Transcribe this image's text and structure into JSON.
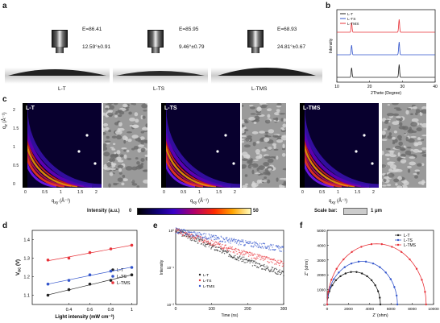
{
  "panels": {
    "a": {
      "letter": "a",
      "samples": [
        {
          "label": "L-T",
          "energy": "E=86.41",
          "angle": "12.59°±0.91"
        },
        {
          "label": "L-TS",
          "energy": "E=85.95",
          "angle": "9.46°±0.79"
        },
        {
          "label": "L-TMS",
          "energy": "E=68.93",
          "angle": "24.81°±0.67"
        }
      ]
    },
    "b": {
      "letter": "b"
    },
    "c": {
      "letter": "c",
      "labels": [
        "L-T",
        "L-TS",
        "L-TMS"
      ],
      "qz_label": "q",
      "qz_sub": "z",
      "qz_unit": " (Å⁻¹)",
      "qxy_label": "q",
      "qxy_sub": "xy",
      "qxy_unit": " (Å⁻¹)",
      "y_ticks": [
        "0",
        "0.5",
        "1",
        "1.5",
        "2"
      ],
      "x_ticks": [
        "0",
        "0.5",
        "1",
        "1.5",
        "2"
      ],
      "colorbar_label": "Intensity (a.u.)",
      "colorbar_min": "0",
      "colorbar_max": "50",
      "scalebar_label": "Scale bar:",
      "scalebar_value": "1 μm"
    },
    "d": {
      "letter": "d"
    },
    "e": {
      "letter": "e"
    },
    "f": {
      "letter": "f"
    }
  },
  "chart_data": [
    {
      "id": "b",
      "type": "line",
      "xlabel": "2Thete (Degree)",
      "ylabel": "Intensity",
      "xlim": [
        10,
        40
      ],
      "x_ticks": [
        10,
        20,
        30,
        40
      ],
      "peaks": [
        14.5,
        29.0
      ],
      "series": [
        {
          "name": "L-T",
          "color": "#222222"
        },
        {
          "name": "L-TS",
          "color": "#3355cc"
        },
        {
          "name": "L-TMS",
          "color": "#e8333a"
        }
      ]
    },
    {
      "id": "d",
      "type": "scatter",
      "xlabel": "Light intensity (mW cm⁻²)",
      "ylabel": "V",
      "ylabel_sub": "OC",
      "ylabel_unit": " (V)",
      "xlim": [
        0.05,
        1.05
      ],
      "ylim": [
        1.05,
        1.45
      ],
      "x_ticks": [
        0.4,
        0.6,
        0.8,
        1
      ],
      "y_ticks": [
        1.1,
        1.2,
        1.3,
        1.4
      ],
      "x": [
        0.2,
        0.4,
        0.6,
        0.8,
        1.0
      ],
      "series": [
        {
          "name": "L-T",
          "color": "#222222",
          "values": [
            1.1,
            1.13,
            1.16,
            1.18,
            1.21
          ]
        },
        {
          "name": "L-TS",
          "color": "#3355cc",
          "values": [
            1.16,
            1.18,
            1.21,
            1.23,
            1.25
          ]
        },
        {
          "name": "L-TMS",
          "color": "#e8333a",
          "values": [
            1.29,
            1.3,
            1.33,
            1.35,
            1.37
          ]
        }
      ]
    },
    {
      "id": "e",
      "type": "scatter",
      "xlabel": "Time (ns)",
      "ylabel": "Intensity",
      "xlim": [
        0,
        300
      ],
      "x_ticks": [
        0,
        100,
        200,
        300
      ],
      "y_scale": "log",
      "ylim": [
        0.01,
        1
      ],
      "y_ticks": [
        "10⁻²",
        "10⁻¹",
        "10⁰"
      ],
      "series": [
        {
          "name": "L-T",
          "color": "#222222",
          "tau": 95,
          "offset": 0.03
        },
        {
          "name": "L-TS",
          "color": "#e8333a",
          "tau": 120,
          "offset": 0.05
        },
        {
          "name": "L-TMS",
          "color": "#3355cc",
          "tau": 210,
          "offset": 0.1
        }
      ]
    },
    {
      "id": "f",
      "type": "line",
      "xlabel": "Z' (ohm)",
      "ylabel": "Z'' (ohm)",
      "xlim": [
        0,
        10000
      ],
      "ylim": [
        0,
        5000
      ],
      "x_ticks": [
        0,
        2000,
        4000,
        6000,
        8000,
        10000
      ],
      "y_ticks": [
        0,
        1000,
        2000,
        3000,
        4000,
        5000
      ],
      "series": [
        {
          "name": "L-T",
          "color": "#222222",
          "diameter": 5000
        },
        {
          "name": "L-TS",
          "color": "#3355cc",
          "diameter": 6600
        },
        {
          "name": "L-TMS",
          "color": "#e8333a",
          "diameter": 9300
        }
      ]
    }
  ]
}
